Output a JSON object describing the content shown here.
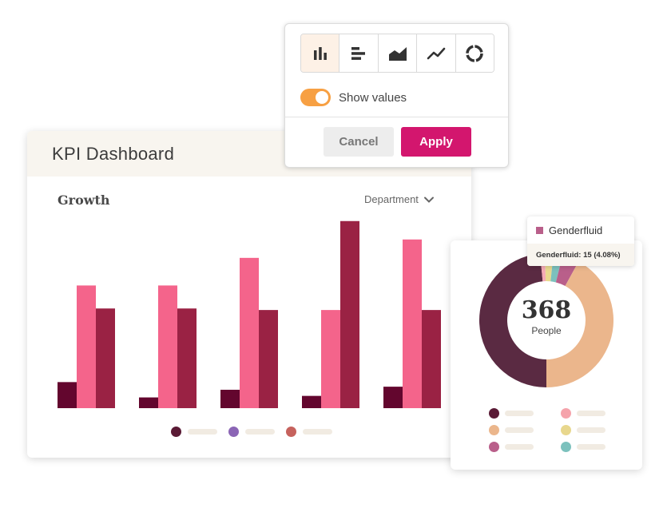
{
  "kpi_card": {
    "title": "KPI Dashboard",
    "section_title": "Growth",
    "dropdown_label": "Department"
  },
  "chart_data": [
    {
      "type": "bar",
      "categories": [
        "",
        "",
        "",
        "",
        ""
      ],
      "series": [
        {
          "values": [
            17,
            7,
            12,
            8,
            14
          ],
          "color": "#63062e"
        },
        {
          "values": [
            80,
            80,
            98,
            64,
            110
          ],
          "color": "#f4648b"
        },
        {
          "values": [
            65,
            65,
            64,
            122,
            64
          ],
          "color": "#9a2244"
        }
      ],
      "ylim": [
        0,
        125
      ],
      "grid": false,
      "legend_colors": [
        "#5a1a35",
        "#8b65b5",
        "#c6625d"
      ]
    },
    {
      "type": "pie",
      "segments": [
        {
          "value": 48.5,
          "color": "#5a2a42"
        },
        {
          "value": 1.2,
          "color": "#f5a9b5"
        },
        {
          "value": 2.0,
          "color": "#e9d98f"
        },
        {
          "value": 2.2,
          "color": "#7cc1bd"
        },
        {
          "name": "Genderfluid",
          "value": 4.08,
          "color": "#b95f8a"
        },
        {
          "value": 42.02,
          "color": "#ebb68c"
        }
      ],
      "center_value": "368",
      "center_label": "People",
      "legend_colors": [
        "#5a1a35",
        "#f5a3ab",
        "#ebb68c",
        "#e8d78d",
        "#b95f8a",
        "#7cc1bd"
      ]
    }
  ],
  "popover": {
    "chart_types": [
      {
        "icon": "vertical-bar-icon",
        "active": true
      },
      {
        "icon": "horizontal-bar-icon",
        "active": false
      },
      {
        "icon": "area-chart-icon",
        "active": false
      },
      {
        "icon": "line-chart-icon",
        "active": false
      },
      {
        "icon": "donut-chart-icon",
        "active": false
      }
    ],
    "toggle_label": "Show values",
    "toggle_on": true,
    "cancel_label": "Cancel",
    "apply_label": "Apply"
  },
  "tooltip": {
    "name": "Genderfluid",
    "detail": "Genderfluid: 15 (4.08%)"
  },
  "colors": {
    "accent": "#d3166e",
    "toggle": "#f7a043",
    "header_bg": "#f8f5ef"
  }
}
